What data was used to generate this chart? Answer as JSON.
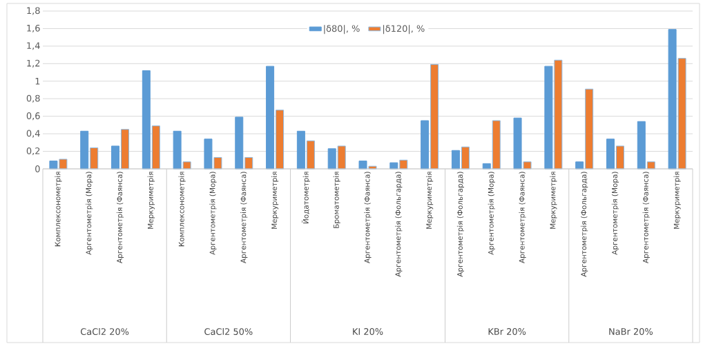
{
  "chart_data": {
    "type": "bar",
    "categories": [
      "Комплексонометрія",
      "Аргентометрія (Мора)",
      "Аргентометрія (Фаянса)",
      "Меркуриметрія",
      "Комплексонометрія",
      "Аргентометрія (Мора)",
      "Аргентометрія (Фаянса)",
      "Меркуриметрія",
      "Йодатометрія",
      "Броматометрія",
      "Аргентометрія (Фаянса)",
      "Аргентометрія (Фольгарда)",
      "Меркуриметрія",
      "Аргентометрія (Фольгарда)",
      "Аргентометрія (Мора)",
      "Аргентометрія (Фаянса)",
      "Меркуриметрія",
      "Аргентометрія (Фольгарда)",
      "Аргентометрія (Мора)",
      "Аргентометрія (Фаянса)",
      "Меркуриметрія"
    ],
    "series": [
      {
        "name": "|δ80|, %",
        "color": "#5b9bd5",
        "values": [
          0.09,
          0.43,
          0.26,
          1.12,
          0.43,
          0.34,
          0.59,
          1.17,
          0.43,
          0.23,
          0.09,
          0.07,
          0.55,
          0.21,
          0.06,
          0.58,
          1.17,
          0.08,
          0.34,
          0.54,
          1.59
        ]
      },
      {
        "name": "|δ120|, %",
        "color": "#ed7d31",
        "values": [
          0.11,
          0.24,
          0.45,
          0.49,
          0.08,
          0.13,
          0.13,
          0.67,
          0.32,
          0.26,
          0.03,
          0.1,
          1.19,
          0.25,
          0.55,
          0.08,
          1.24,
          0.91,
          0.26,
          0.08,
          1.26
        ]
      }
    ],
    "annotations": [
      "CaCl2 20%",
      "CaCl2 50%",
      "KI 20%",
      "KBr 20%",
      "NaBr 20%"
    ],
    "ylim": [
      0,
      1.8
    ],
    "yticks": [
      0,
      {
        "value": 0.2,
        "label": "0,2"
      },
      {
        "value": 0.4,
        "label": "0,4"
      },
      {
        "value": 0.6,
        "label": "0,6"
      },
      {
        "value": 0.8,
        "label": "0,8"
      },
      1,
      {
        "value": 1.2,
        "label": "1,2"
      },
      {
        "value": 1.4,
        "label": "1,4"
      },
      {
        "value": 1.6,
        "label": "1,6"
      },
      {
        "value": 1.8,
        "label": "1,8"
      }
    ],
    "grid": "y",
    "legend": "top"
  }
}
